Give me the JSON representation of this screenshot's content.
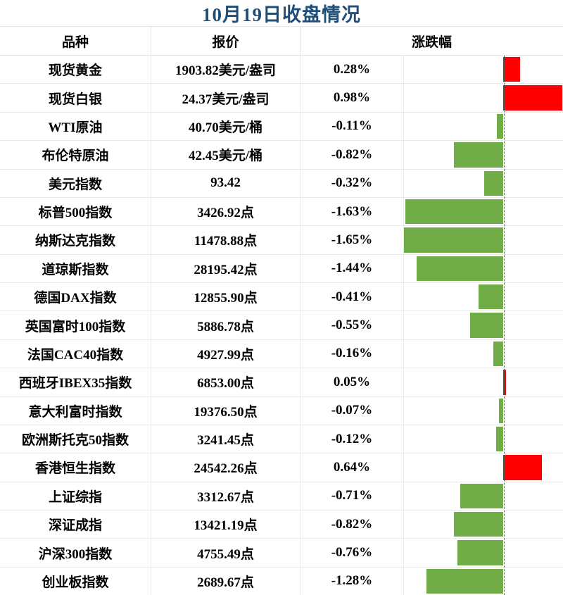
{
  "title": {
    "text": "10月19日收盘情况",
    "color": "#1f4e79"
  },
  "table": {
    "headers": {
      "name": "品种",
      "quote": "报价",
      "change": "涨跌幅"
    },
    "rows": [
      {
        "name": "现货黄金",
        "quote": "1903.82美元/盎司",
        "change": "0.28%",
        "change_value": 0.28
      },
      {
        "name": "现货白银",
        "quote": "24.37美元/盎司",
        "change": "0.98%",
        "change_value": 0.98
      },
      {
        "name": "WTI原油",
        "quote": "40.70美元/桶",
        "change": "-0.11%",
        "change_value": -0.11
      },
      {
        "name": "布伦特原油",
        "quote": "42.45美元/桶",
        "change": "-0.82%",
        "change_value": -0.82
      },
      {
        "name": "美元指数",
        "quote": "93.42",
        "change": "-0.32%",
        "change_value": -0.32
      },
      {
        "name": "标普500指数",
        "quote": "3426.92点",
        "change": "-1.63%",
        "change_value": -1.63
      },
      {
        "name": "纳斯达克指数",
        "quote": "11478.88点",
        "change": "-1.65%",
        "change_value": -1.65
      },
      {
        "name": "道琼斯指数",
        "quote": "28195.42点",
        "change": "-1.44%",
        "change_value": -1.44
      },
      {
        "name": "德国DAX指数",
        "quote": "12855.90点",
        "change": "-0.41%",
        "change_value": -0.41
      },
      {
        "name": "英国富时100指数",
        "quote": "5886.78点",
        "change": "-0.55%",
        "change_value": -0.55
      },
      {
        "name": "法国CAC40指数",
        "quote": "4927.99点",
        "change": "-0.16%",
        "change_value": -0.16
      },
      {
        "name": "西班牙IBEX35指数",
        "quote": "6853.00点",
        "change": "0.05%",
        "change_value": 0.05
      },
      {
        "name": "意大利富时指数",
        "quote": "19376.50点",
        "change": "-0.07%",
        "change_value": -0.07
      },
      {
        "name": "欧洲斯托克50指数",
        "quote": "3241.45点",
        "change": "-0.12%",
        "change_value": -0.12
      },
      {
        "name": "香港恒生指数",
        "quote": "24542.26点",
        "change": "0.64%",
        "change_value": 0.64
      },
      {
        "name": "上证综指",
        "quote": "3312.67点",
        "change": "-0.71%",
        "change_value": -0.71
      },
      {
        "name": "深证成指",
        "quote": "13421.19点",
        "change": "-0.82%",
        "change_value": -0.82
      },
      {
        "name": "沪深300指数",
        "quote": "4755.49点",
        "change": "-0.76%",
        "change_value": -0.76
      },
      {
        "name": "创业板指数",
        "quote": "2689.67点",
        "change": "-1.28%",
        "change_value": -1.28
      }
    ]
  },
  "chart_data": {
    "type": "bar",
    "orientation": "horizontal",
    "title": "10月19日收盘情况",
    "categories": [
      "现货黄金",
      "现货白银",
      "WTI原油",
      "布伦特原油",
      "美元指数",
      "标普500指数",
      "纳斯达克指数",
      "道琼斯指数",
      "德国DAX指数",
      "英国富时100指数",
      "法国CAC40指数",
      "西班牙IBEX35指数",
      "意大利富时指数",
      "欧洲斯托克50指数",
      "香港恒生指数",
      "上证综指",
      "深证成指",
      "沪深300指数",
      "创业板指数"
    ],
    "values": [
      0.28,
      0.98,
      -0.11,
      -0.82,
      -0.32,
      -1.63,
      -1.65,
      -1.44,
      -0.41,
      -0.55,
      -0.16,
      0.05,
      -0.07,
      -0.12,
      0.64,
      -0.71,
      -0.82,
      -0.76,
      -1.28
    ],
    "unit": "%",
    "xlim": [
      -1.65,
      0.98
    ],
    "baseline": 0,
    "positive_color": "#ff0000",
    "negative_color": "#70ad47",
    "grid_color": "#e9e9e9",
    "legend": "none"
  }
}
